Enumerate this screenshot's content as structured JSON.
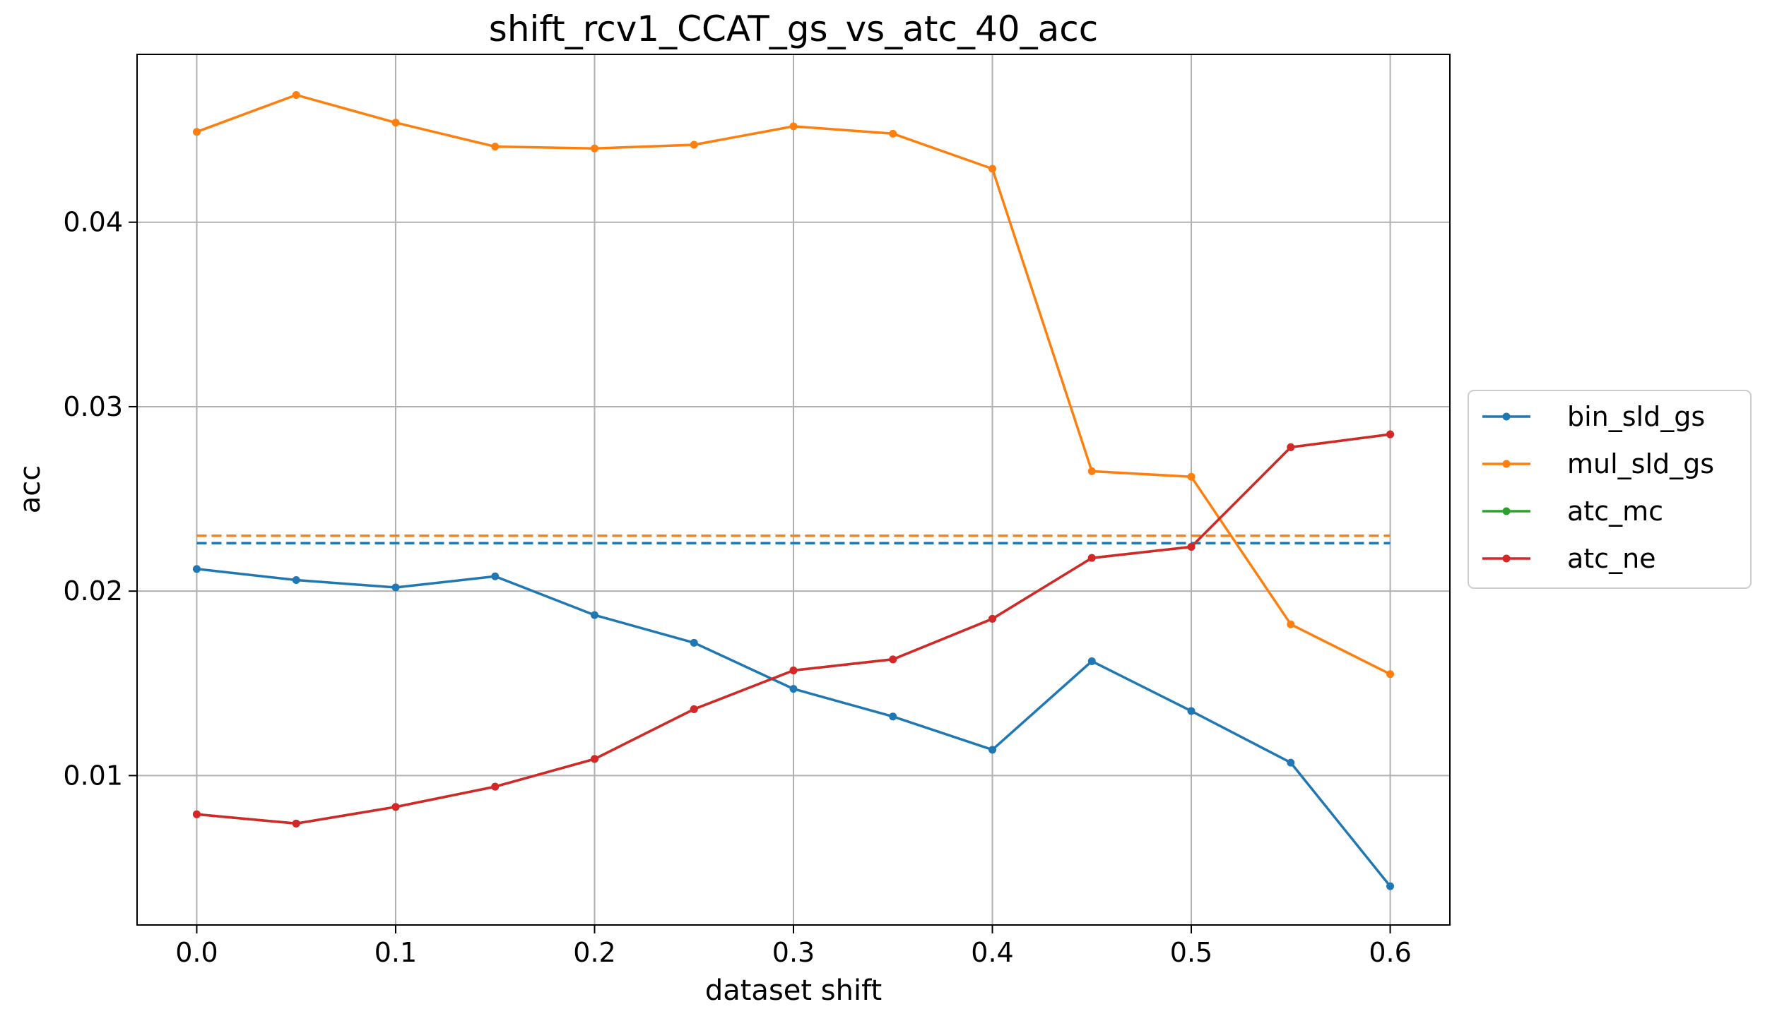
{
  "chart_data": {
    "type": "line",
    "title": "shift_rcv1_CCAT_gs_vs_atc_40_acc",
    "xlabel": "dataset shift",
    "ylabel": "acc",
    "xlim": [
      -0.03,
      0.63
    ],
    "ylim": [
      0.0019,
      0.0491
    ],
    "xticks": [
      0.0,
      0.1,
      0.2,
      0.3,
      0.4,
      0.5,
      0.6
    ],
    "xtick_labels": [
      "0.0",
      "0.1",
      "0.2",
      "0.3",
      "0.4",
      "0.5",
      "0.6"
    ],
    "yticks": [
      0.01,
      0.02,
      0.03,
      0.04
    ],
    "ytick_labels": [
      "0.01",
      "0.02",
      "0.03",
      "0.04"
    ],
    "grid": true,
    "legend_position": "right, outside plot",
    "x": [
      0.0,
      0.05,
      0.1,
      0.15,
      0.2,
      0.25,
      0.3,
      0.35,
      0.4,
      0.45,
      0.5,
      0.55,
      0.6
    ],
    "series": [
      {
        "name": "bin_sld_gs",
        "color": "#1f77b4",
        "values": [
          0.0212,
          0.0206,
          0.0202,
          0.0208,
          0.0187,
          0.0172,
          0.0147,
          0.0132,
          0.0114,
          0.0162,
          0.0135,
          0.0107,
          0.004
        ],
        "reference": 0.0226
      },
      {
        "name": "mul_sld_gs",
        "color": "#ff7f0e",
        "values": [
          0.0449,
          0.0469,
          0.0454,
          0.0441,
          0.044,
          0.0442,
          0.0452,
          0.0448,
          0.0429,
          0.0265,
          0.0262,
          0.0182,
          0.0155
        ],
        "reference": 0.023
      },
      {
        "name": "atc_mc",
        "color": "#2ca02c",
        "values": [
          0.0079,
          0.0074,
          0.0083,
          0.0094,
          0.0109,
          0.0136,
          0.0157,
          0.0163,
          0.0185,
          0.0218,
          0.0224,
          0.0278,
          0.0285
        ]
      },
      {
        "name": "atc_ne",
        "color": "#d62728",
        "values": [
          0.0079,
          0.0074,
          0.0083,
          0.0094,
          0.0109,
          0.0136,
          0.0157,
          0.0163,
          0.0185,
          0.0218,
          0.0224,
          0.0278,
          0.0285
        ]
      }
    ]
  }
}
